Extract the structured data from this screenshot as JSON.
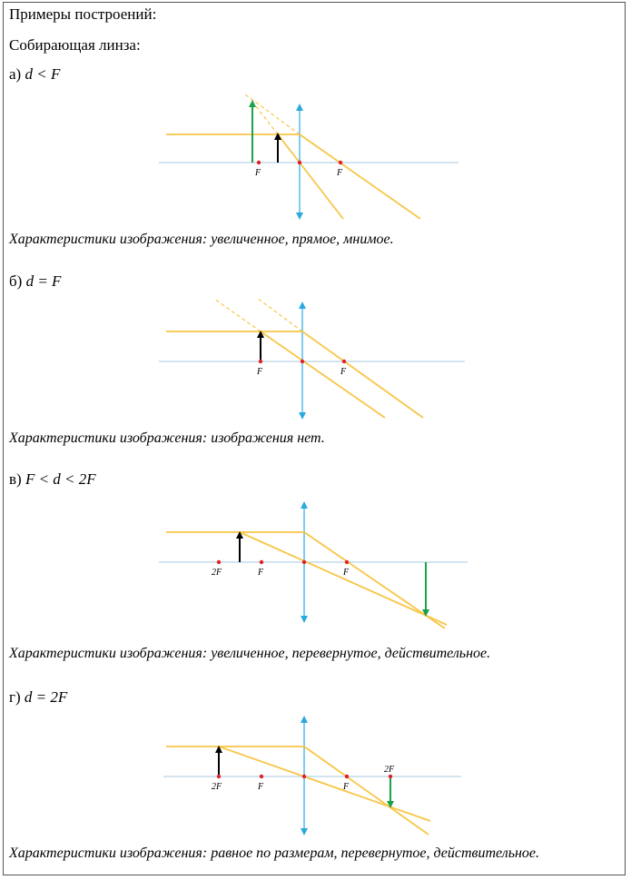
{
  "header": {
    "title": "Примеры построений:",
    "subtitle": "Собирающая линза:"
  },
  "sections": [
    {
      "label": "а)",
      "condition": "d < F",
      "caption": "Характеристики изображения: увеличенное, прямое, мнимое."
    },
    {
      "label": "б)",
      "condition": "d = F",
      "caption": "Характеристики изображения: изображения нет."
    },
    {
      "label": "в)",
      "condition": "F < d < 2F",
      "caption": "Характеристики изображения: увеличенное, перевернутое, действительное."
    },
    {
      "label": "г)",
      "condition": "d = 2F",
      "caption": "Характеристики изображения: равное по размерам, перевернутое, действительное."
    }
  ],
  "diagram_labels": {
    "focus": "F",
    "double_focus": "2F"
  },
  "colors": {
    "ray": "#f7c646",
    "axis": "#b7d3e6",
    "lens": "#2aa9e0",
    "object": "#000000",
    "image": "#1aa14a",
    "point": "#e0202a"
  }
}
